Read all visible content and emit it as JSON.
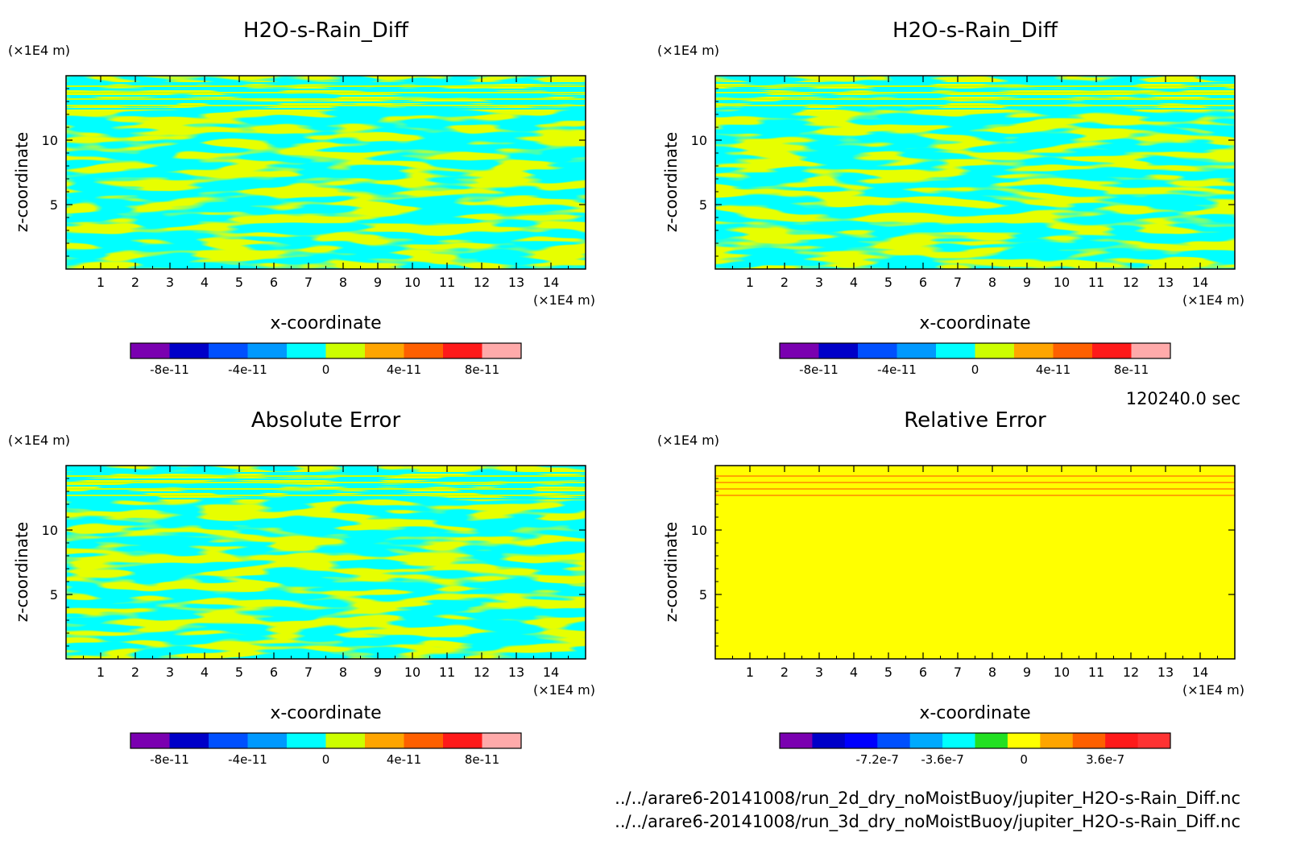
{
  "footer": {
    "time": "120240.0 sec",
    "file1": "../../arare6-20141008/run_2d_dry_noMoistBuoy/jupiter_H2O-s-Rain_Diff.nc",
    "file2": "../../arare6-20141008/run_3d_dry_noMoistBuoy/jupiter_H2O-s-Rain_Diff.nc"
  },
  "chart_data": [
    {
      "type": "heatmap",
      "title": "H2O-s-Rain_Diff",
      "xlabel": "x-coordinate",
      "ylabel": "z-coordinate",
      "x_unit": "(×1E4 m)",
      "z_unit": "(×1E4 m)",
      "xlim": [
        0,
        15
      ],
      "ylim": [
        0,
        15
      ],
      "x_ticks": [
        1,
        2,
        3,
        4,
        5,
        6,
        7,
        8,
        9,
        10,
        11,
        12,
        13,
        14
      ],
      "y_ticks": [
        5,
        10
      ],
      "colorbar": {
        "colors": [
          "#7a00b0",
          "#0000c8",
          "#0050ff",
          "#0099ff",
          "#00ffff",
          "#ccff00",
          "#ffa500",
          "#ff6000",
          "#ff1a1a",
          "#ffaaaa"
        ],
        "tick_labels": [
          "-8e-11",
          "-4e-11",
          "0",
          "4e-11",
          "8e-11"
        ]
      },
      "field_colors": [
        "#00ffff",
        "#ccff00"
      ]
    },
    {
      "type": "heatmap",
      "title": "H2O-s-Rain_Diff",
      "xlabel": "x-coordinate",
      "ylabel": "z-coordinate",
      "x_unit": "(×1E4 m)",
      "z_unit": "(×1E4 m)",
      "xlim": [
        0,
        15
      ],
      "ylim": [
        0,
        15
      ],
      "x_ticks": [
        1,
        2,
        3,
        4,
        5,
        6,
        7,
        8,
        9,
        10,
        11,
        12,
        13,
        14
      ],
      "y_ticks": [
        5,
        10
      ],
      "colorbar": {
        "colors": [
          "#7a00b0",
          "#0000c8",
          "#0050ff",
          "#0099ff",
          "#00ffff",
          "#ccff00",
          "#ffa500",
          "#ff6000",
          "#ff1a1a",
          "#ffaaaa"
        ],
        "tick_labels": [
          "-8e-11",
          "-4e-11",
          "0",
          "4e-11",
          "8e-11"
        ]
      },
      "field_colors": [
        "#00ffff",
        "#ccff00"
      ]
    },
    {
      "type": "heatmap",
      "title": "Absolute Error",
      "xlabel": "x-coordinate",
      "ylabel": "z-coordinate",
      "x_unit": "(×1E4 m)",
      "z_unit": "(×1E4 m)",
      "xlim": [
        0,
        15
      ],
      "ylim": [
        0,
        15
      ],
      "x_ticks": [
        1,
        2,
        3,
        4,
        5,
        6,
        7,
        8,
        9,
        10,
        11,
        12,
        13,
        14
      ],
      "y_ticks": [
        5,
        10
      ],
      "colorbar": {
        "colors": [
          "#7a00b0",
          "#0000c8",
          "#0050ff",
          "#0099ff",
          "#00ffff",
          "#ccff00",
          "#ffa500",
          "#ff6000",
          "#ff1a1a",
          "#ffaaaa"
        ],
        "tick_labels": [
          "-8e-11",
          "-4e-11",
          "0",
          "4e-11",
          "8e-11"
        ]
      },
      "field_colors": [
        "#00ffff",
        "#ccff00"
      ]
    },
    {
      "type": "heatmap",
      "title": "Relative Error",
      "xlabel": "x-coordinate",
      "ylabel": "z-coordinate",
      "x_unit": "(×1E4 m)",
      "z_unit": "(×1E4 m)",
      "xlim": [
        0,
        15
      ],
      "ylim": [
        0,
        15
      ],
      "x_ticks": [
        1,
        2,
        3,
        4,
        5,
        6,
        7,
        8,
        9,
        10,
        11,
        12,
        13,
        14
      ],
      "y_ticks": [
        5,
        10
      ],
      "colorbar": {
        "colors": [
          "#7a00b0",
          "#0000c8",
          "#0000ff",
          "#0050ff",
          "#00aaff",
          "#00ffff",
          "#22e022",
          "#ffff00",
          "#ffa500",
          "#ff6000",
          "#ff1a1a",
          "#ff3333"
        ],
        "tick_labels": [
          "-7.2e-7",
          "-3.6e-7",
          "0",
          "3.6e-7"
        ]
      },
      "field_colors": [
        "#ffff00",
        "#ffa500"
      ]
    }
  ]
}
